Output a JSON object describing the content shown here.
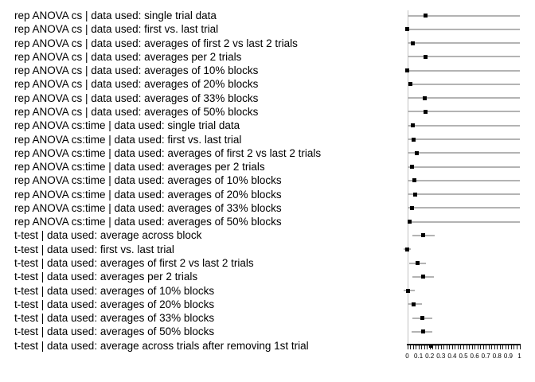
{
  "chart_data": {
    "type": "scatter",
    "subtype": "forest-plot-dot-with-ci",
    "title": "",
    "xlabel": "",
    "ylabel": "",
    "xlim": [
      0,
      1
    ],
    "x_major_tick_labels": [
      "0",
      "0.1",
      "0.2",
      "0.3",
      "0.4",
      "0.5",
      "0.6",
      "0.7",
      "0.8",
      "0.9",
      "1"
    ],
    "x_major_tick_values": [
      0,
      0.1,
      0.2,
      0.3,
      0.4,
      0.5,
      0.6,
      0.7,
      0.8,
      0.9,
      1
    ],
    "x_minor_tick_step": 0.025,
    "grid": false,
    "legend": false,
    "marker_style": "black-square",
    "rows": [
      {
        "label": "rep ANOVA cs | data used: single trial data",
        "value": 0.165,
        "ci_low": 0.0,
        "ci_high": 1.0
      },
      {
        "label": "rep ANOVA cs | data used: first vs. last trial",
        "value": 0.0,
        "ci_low": 0.0,
        "ci_high": 1.0
      },
      {
        "label": "rep ANOVA cs | data used: averages of first 2 vs last 2 trials",
        "value": 0.05,
        "ci_low": 0.0,
        "ci_high": 1.0
      },
      {
        "label": "rep ANOVA cs | data used: averages per 2 trials",
        "value": 0.165,
        "ci_low": 0.0,
        "ci_high": 1.0
      },
      {
        "label": "rep ANOVA cs | data used: averages of 10% blocks",
        "value": 0.0,
        "ci_low": 0.0,
        "ci_high": 1.0
      },
      {
        "label": "rep ANOVA cs | data used: averages of 20% blocks",
        "value": 0.03,
        "ci_low": 0.0,
        "ci_high": 1.0
      },
      {
        "label": "rep ANOVA cs | data used: averages of 33% blocks",
        "value": 0.155,
        "ci_low": 0.0,
        "ci_high": 1.0
      },
      {
        "label": "rep ANOVA cs | data used: averages of 50% blocks",
        "value": 0.165,
        "ci_low": 0.0,
        "ci_high": 1.0
      },
      {
        "label": "rep ANOVA cs:time | data used: single trial data",
        "value": 0.05,
        "ci_low": 0.0,
        "ci_high": 1.0
      },
      {
        "label": "rep ANOVA cs:time | data used: first vs. last trial",
        "value": 0.055,
        "ci_low": 0.0,
        "ci_high": 1.0
      },
      {
        "label": "rep ANOVA cs:time | data used: averages of first 2 vs last 2 trials",
        "value": 0.085,
        "ci_low": 0.0,
        "ci_high": 1.0
      },
      {
        "label": "rep ANOVA cs:time | data used: averages per 2 trials",
        "value": 0.045,
        "ci_low": 0.0,
        "ci_high": 1.0
      },
      {
        "label": "rep ANOVA cs:time | data used: averages of 10% blocks",
        "value": 0.065,
        "ci_low": 0.0,
        "ci_high": 1.0
      },
      {
        "label": "rep ANOVA cs:time | data used: averages of 20% blocks",
        "value": 0.07,
        "ci_low": 0.0,
        "ci_high": 1.0
      },
      {
        "label": "rep ANOVA cs:time | data used: averages of 33% blocks",
        "value": 0.04,
        "ci_low": 0.0,
        "ci_high": 1.0
      },
      {
        "label": "rep ANOVA cs:time | data used: averages of 50% blocks",
        "value": 0.02,
        "ci_low": 0.0,
        "ci_high": 1.0
      },
      {
        "label": "t-test | data used: average across block",
        "value": 0.145,
        "ci_low": 0.045,
        "ci_high": 0.245
      },
      {
        "label": "t-test | data used: first vs. last trial",
        "value": 0.0,
        "ci_low": -0.035,
        "ci_high": 0.035
      },
      {
        "label": "t-test | data used: averages of first 2 vs last 2 trials",
        "value": 0.095,
        "ci_low": 0.02,
        "ci_high": 0.17
      },
      {
        "label": "t-test | data used: averages per 2 trials",
        "value": 0.14,
        "ci_low": 0.045,
        "ci_high": 0.24
      },
      {
        "label": "t-test | data used: averages of 10% blocks",
        "value": 0.005,
        "ci_low": -0.03,
        "ci_high": 0.07
      },
      {
        "label": "t-test | data used: averages of 20% blocks",
        "value": 0.06,
        "ci_low": 0.005,
        "ci_high": 0.13
      },
      {
        "label": "t-test | data used: averages of 33% blocks",
        "value": 0.135,
        "ci_low": 0.045,
        "ci_high": 0.225
      },
      {
        "label": "t-test | data used: averages of 50% blocks",
        "value": 0.14,
        "ci_low": 0.04,
        "ci_high": 0.22
      },
      {
        "label": "t-test | data used: average across trials after removing 1st trial",
        "value": 0.21,
        "ci_low": 0.065,
        "ci_high": 0.31
      }
    ]
  },
  "colors": {
    "marker": "#000000",
    "ci_line": "#b3b3b3",
    "axis_line": "#c2c2c2",
    "ruler": "#1a1a1a",
    "text": "#000000",
    "background": "#ffffff"
  }
}
